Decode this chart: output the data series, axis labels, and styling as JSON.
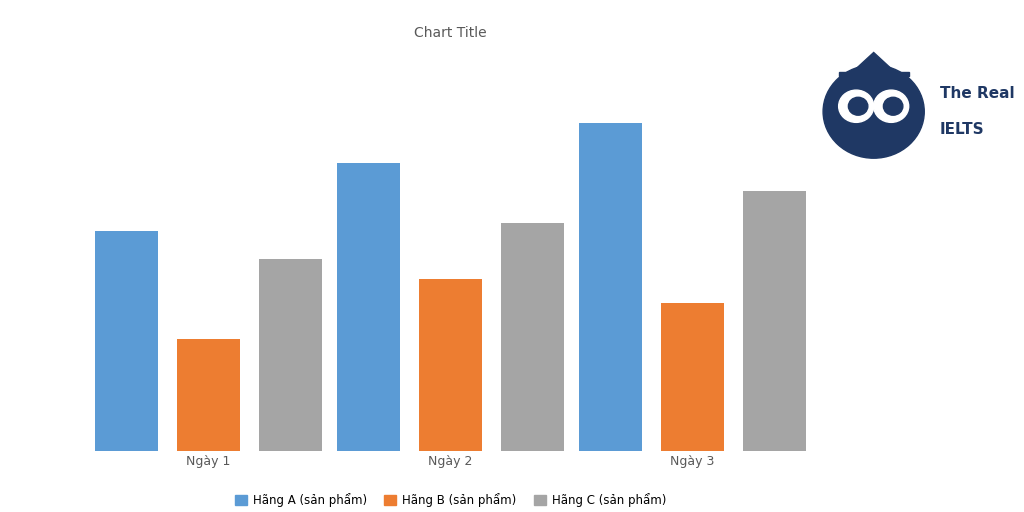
{
  "title": "Chart Title",
  "categories": [
    "Ngày 1",
    "Ngày 2",
    "Ngày 3"
  ],
  "series": [
    {
      "label": "Hãng A (sản phẩm)",
      "color": "#5B9BD5",
      "values": [
        55,
        72,
        82
      ]
    },
    {
      "label": "Hãng B (sản phẩm)",
      "color": "#ED7D31",
      "values": [
        28,
        43,
        37
      ]
    },
    {
      "label": "Hãng C (sản phẩm)",
      "color": "#A5A5A5",
      "values": [
        48,
        57,
        65
      ]
    }
  ],
  "ylim": [
    0,
    100
  ],
  "background_color": "#FFFFFF",
  "grid_color": "#D9D9D9",
  "title_fontsize": 10,
  "axis_label_fontsize": 9,
  "legend_fontsize": 8.5,
  "logo_text": "The Real\nIELTS",
  "logo_color": "#1F3864",
  "logo_fontsize": 12
}
